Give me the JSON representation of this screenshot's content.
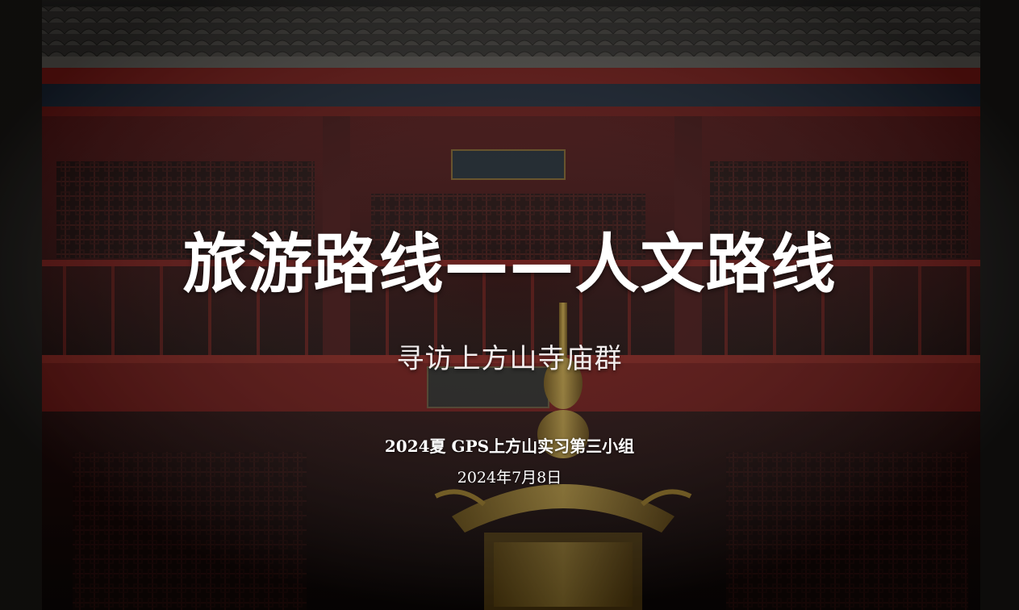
{
  "slide": {
    "title": "旅游路线——人文路线",
    "subtitle": "寻访上方山寺庙群",
    "group": "2024夏 GPS上方山实习第三小组",
    "date": "2024年7月8日"
  },
  "background": {
    "description_icon": "temple-photo",
    "colors": {
      "wall_red": "#6e1414",
      "dark": "#140f0d",
      "gold": "#b8902a"
    }
  }
}
